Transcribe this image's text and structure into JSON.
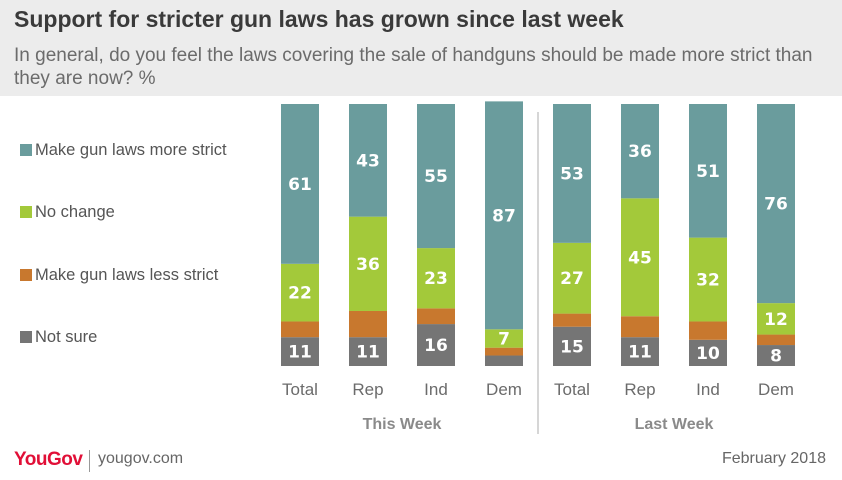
{
  "title": "Support for stricter gun laws has grown since last week",
  "subtitle": "In general, do you feel the laws covering the sale of handguns should be made more strict than they are now? %",
  "footer": {
    "logo": "YouGov",
    "site": "yougov.com",
    "date": "February 2018"
  },
  "chart_data": {
    "type": "bar",
    "stacked": true,
    "ylim": [
      0,
      100
    ],
    "legend_position": "left",
    "groups": [
      {
        "label": "This Week",
        "categories": [
          "Total",
          "Rep",
          "Ind",
          "Dem"
        ]
      },
      {
        "label": "Last  Week",
        "categories": [
          "Total",
          "Rep",
          "Ind",
          "Dem"
        ]
      }
    ],
    "categories": [
      "Total",
      "Rep",
      "Ind",
      "Dem",
      "Total",
      "Rep",
      "Ind",
      "Dem"
    ],
    "series": [
      {
        "name": "Not sure",
        "color": "#757575",
        "values": [
          11,
          11,
          16,
          4,
          15,
          11,
          10,
          8
        ],
        "labeled": [
          true,
          true,
          true,
          false,
          true,
          true,
          true,
          true
        ]
      },
      {
        "name": "Make gun laws less strict",
        "color": "#c8782e",
        "values": [
          6,
          10,
          6,
          3,
          5,
          8,
          7,
          4
        ],
        "labeled": [
          false,
          false,
          false,
          false,
          false,
          false,
          false,
          false
        ]
      },
      {
        "name": "No change",
        "color": "#a3c93a",
        "values": [
          22,
          36,
          23,
          7,
          27,
          45,
          32,
          12
        ],
        "labeled": [
          true,
          true,
          true,
          true,
          true,
          true,
          true,
          true
        ]
      },
      {
        "name": "Make gun laws more strict",
        "color": "#6a9c9d",
        "values": [
          61,
          43,
          55,
          87,
          53,
          36,
          51,
          76
        ],
        "labeled": [
          true,
          true,
          true,
          true,
          true,
          true,
          true,
          true
        ]
      }
    ]
  }
}
